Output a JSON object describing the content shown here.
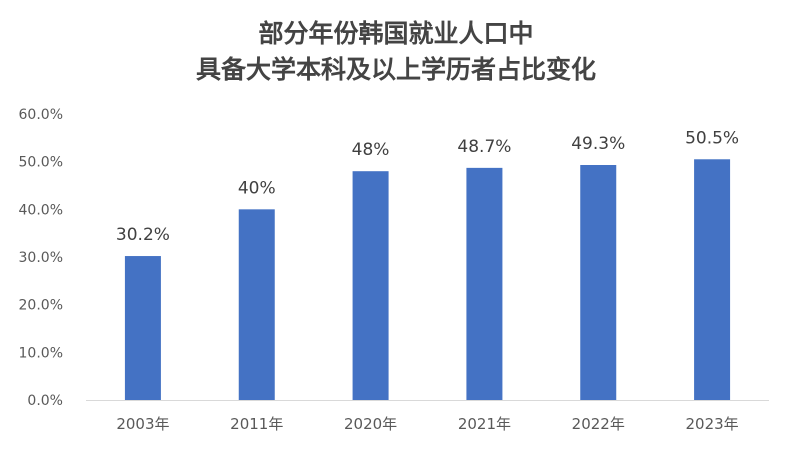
{
  "chart_data": {
    "type": "bar",
    "title_lines": [
      "部分年份韩国就业人口中",
      "具备大学本科及以上学历者占比变化"
    ],
    "categories": [
      "2003年",
      "2011年",
      "2020年",
      "2021年",
      "2022年",
      "2023年"
    ],
    "values": [
      30.2,
      40,
      48,
      48.7,
      49.3,
      50.5
    ],
    "data_labels": [
      "30.2%",
      "40%",
      "48%",
      "48.7%",
      "49.3%",
      "50.5%"
    ],
    "y_ticks": [
      0,
      10,
      20,
      30,
      40,
      50,
      60
    ],
    "y_tick_labels": [
      "0.0%",
      "10.0%",
      "20.0%",
      "30.0%",
      "40.0%",
      "50.0%",
      "60.0%"
    ],
    "ylim": [
      0,
      60
    ],
    "xlabel": "",
    "ylabel": "",
    "grid": false,
    "legend": "none",
    "bar_color": "#4472C4"
  }
}
